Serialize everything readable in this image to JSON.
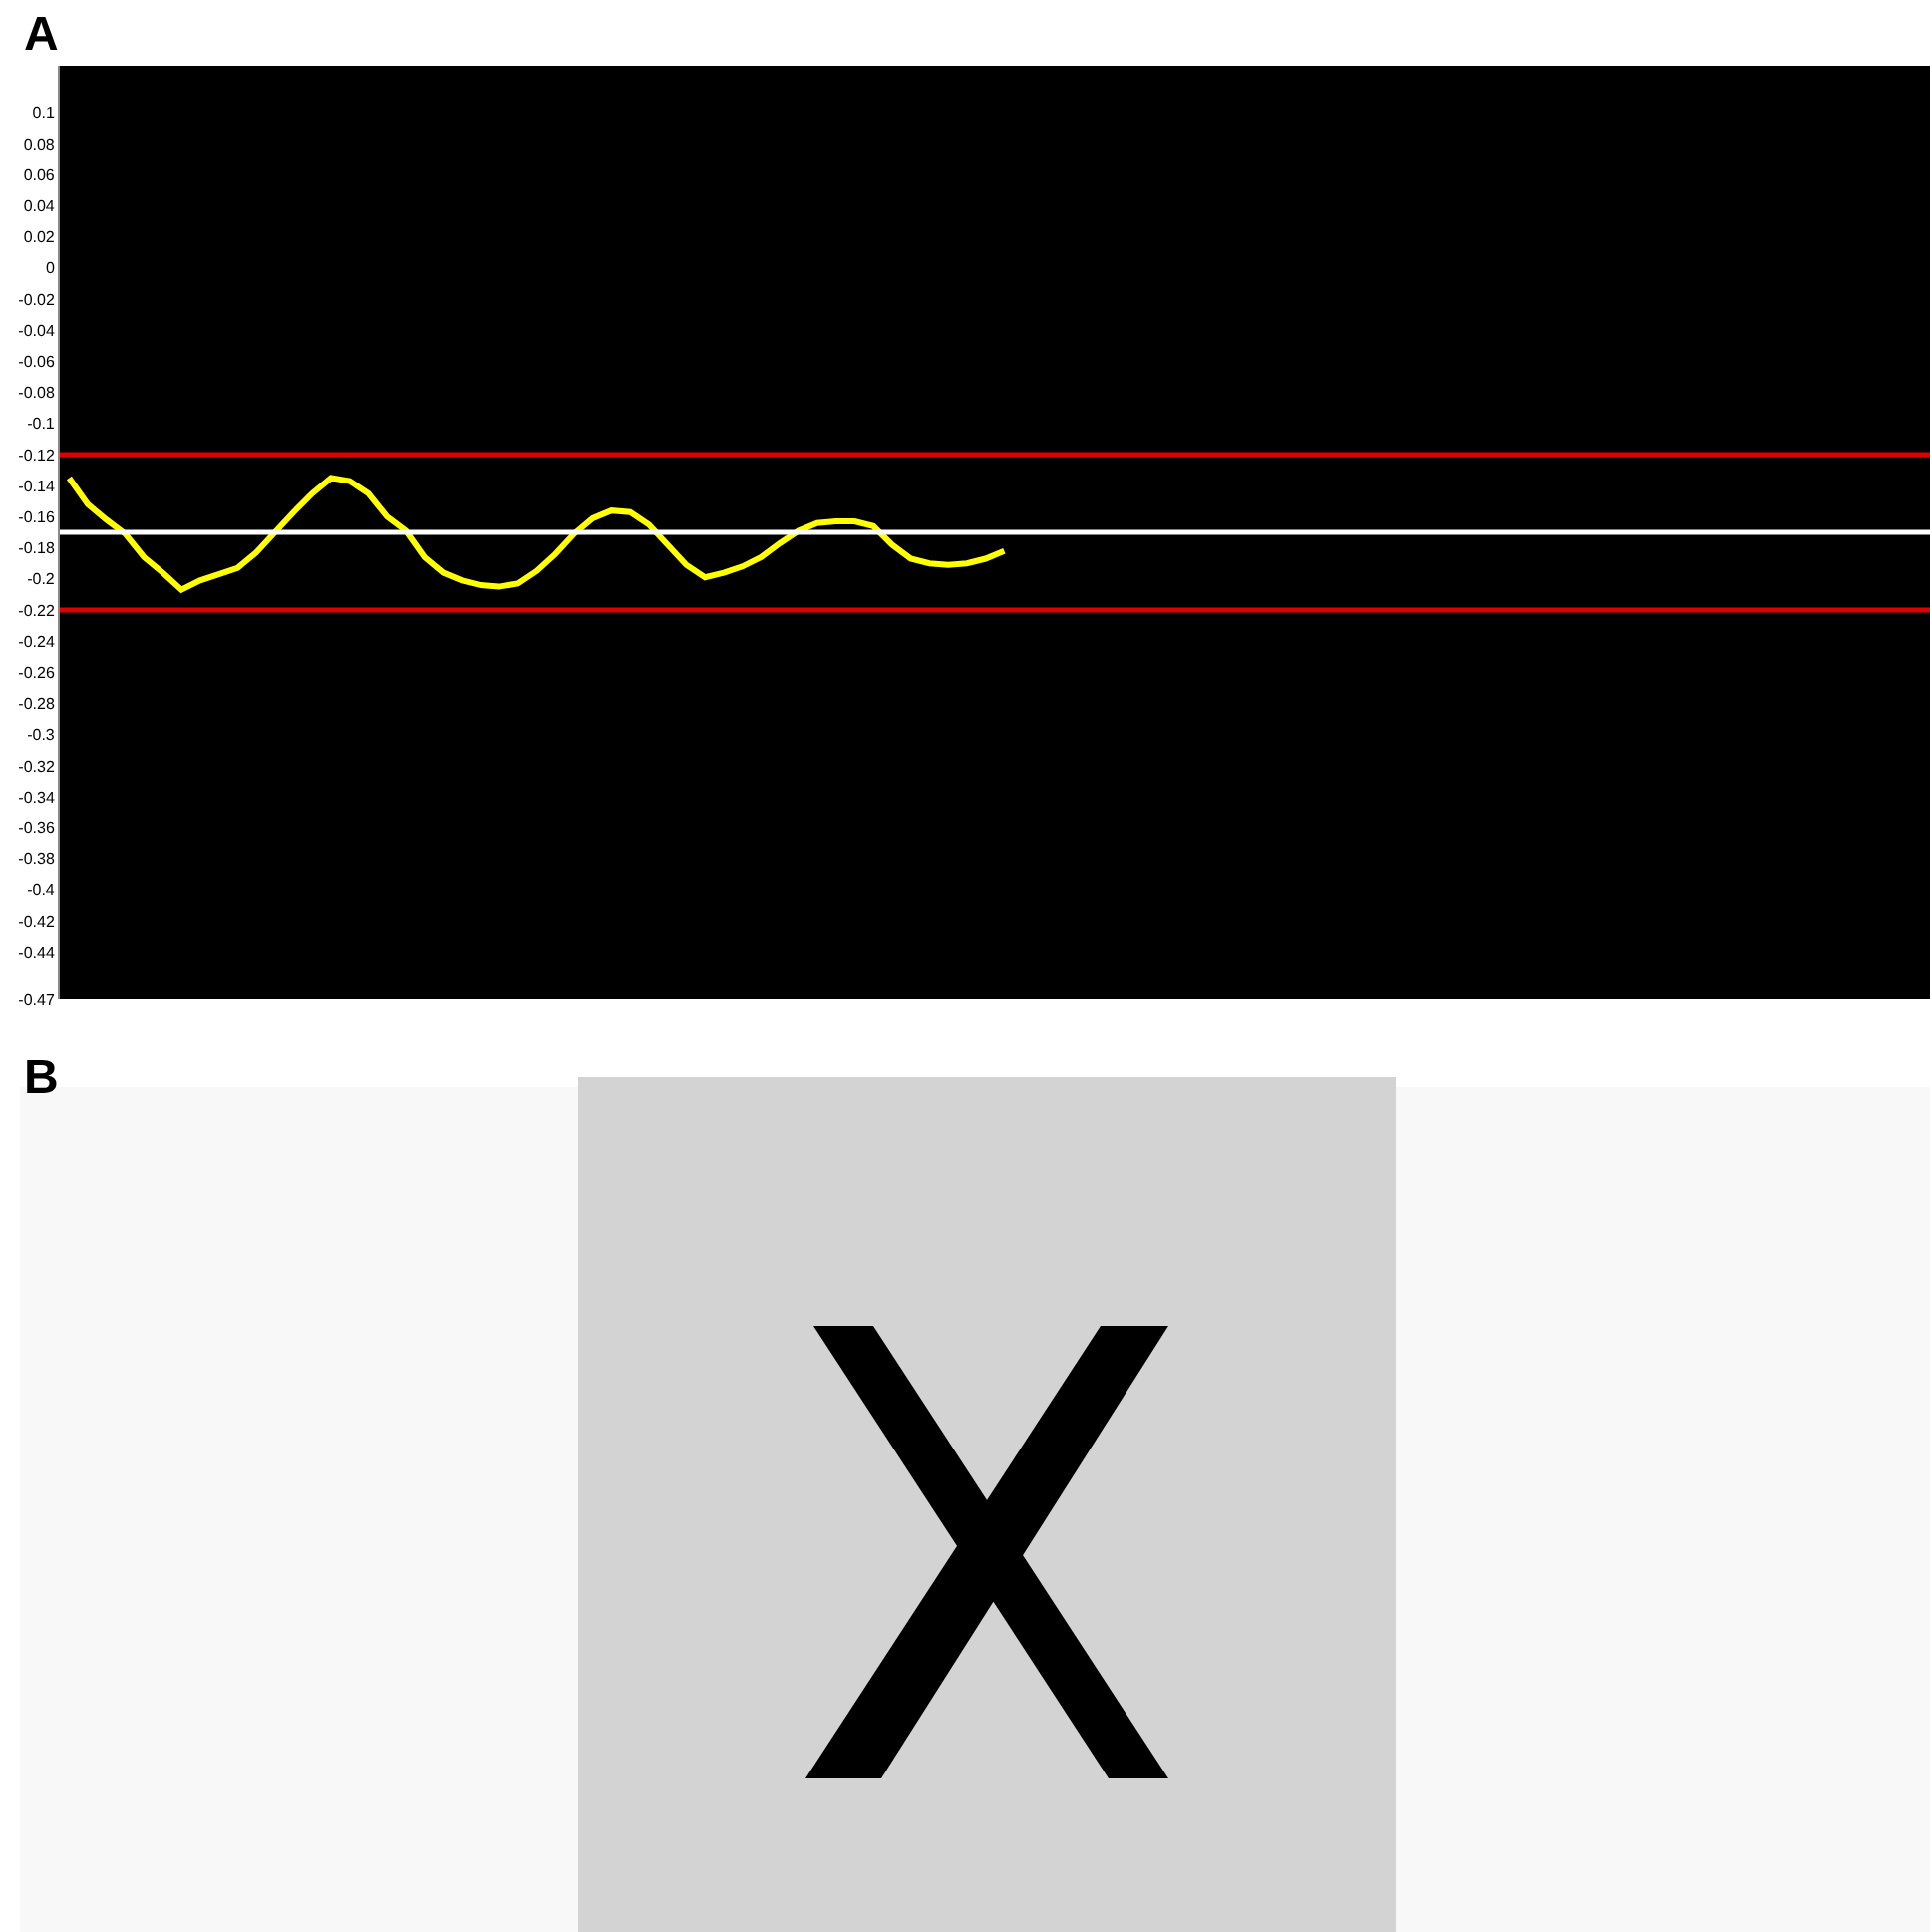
{
  "chart_data": {
    "type": "line",
    "annotations": [
      "A",
      "B"
    ],
    "categories": [
      null,
      null,
      null,
      null,
      null,
      null,
      null,
      null,
      null,
      null,
      null,
      null,
      null,
      null,
      null,
      null,
      null,
      null,
      null,
      null,
      null,
      null,
      null,
      null,
      null,
      null,
      null,
      null,
      null,
      null,
      null,
      null,
      null,
      null,
      null,
      null,
      null,
      null,
      null,
      null,
      null,
      null,
      null,
      null,
      null,
      null,
      null,
      null,
      null,
      null,
      null,
      null,
      null,
      null,
      null,
      null,
      null,
      null,
      null,
      null,
      null,
      null,
      null,
      null,
      null,
      null,
      null,
      null,
      null,
      null,
      null,
      null,
      null,
      null,
      null,
      null,
      null,
      null,
      null,
      null,
      null,
      null,
      null,
      null,
      null,
      null,
      null,
      null,
      null,
      null,
      null,
      null,
      null,
      null,
      null,
      null,
      null,
      null,
      null,
      null
    ],
    "series": [
      {
        "color": "#ffff00",
        "values": [
          -0.135,
          -0.152,
          -0.162,
          -0.171,
          -0.186,
          -0.196,
          -0.207,
          -0.201,
          -0.197,
          -0.193,
          -0.183,
          -0.17,
          -0.157,
          -0.145,
          -0.135,
          -0.137,
          -0.145,
          -0.16,
          -0.169,
          -0.186,
          -0.196,
          -0.201,
          -0.204,
          -0.205,
          -0.203,
          -0.195,
          -0.184,
          -0.171,
          -0.161,
          -0.156,
          -0.157,
          -0.165,
          -0.178,
          -0.191,
          -0.199,
          -0.196,
          -0.192,
          -0.186,
          -0.177,
          -0.169,
          -0.164,
          -0.163,
          -0.163,
          -0.166,
          -0.178,
          -0.187,
          -0.19,
          -0.191,
          -0.19,
          -0.187,
          -0.182,
          null,
          null,
          null,
          null,
          null,
          null,
          null,
          null,
          null,
          null,
          null,
          null,
          null,
          null,
          null,
          null,
          null,
          null,
          null,
          null,
          null,
          null,
          null,
          null,
          null,
          null,
          null,
          null,
          null,
          null,
          null,
          null,
          null,
          null,
          null,
          null,
          null,
          null,
          null,
          null,
          null,
          null,
          null,
          null,
          null,
          null,
          null,
          null,
          null
        ]
      }
    ],
    "ylim": [
      -0.47,
      0.13
    ],
    "yticks": [
      0.1,
      0.08,
      0.06,
      0.04,
      0.02,
      0,
      -0.02,
      -0.04,
      -0.06,
      -0.08,
      -0.1,
      -0.12,
      -0.14,
      -0.16,
      -0.18,
      -0.2,
      -0.22,
      -0.24,
      -0.26,
      -0.28,
      -0.3,
      -0.32,
      -0.34,
      -0.36,
      -0.38,
      -0.4,
      -0.42,
      -0.44,
      -0.47
    ],
    "ref_lines": [
      {
        "axis": "y",
        "value": -0.12,
        "color": "#e00000"
      },
      {
        "axis": "y",
        "value": -0.17,
        "color": "#ffffff"
      },
      {
        "axis": "y",
        "value": -0.22,
        "color": "#e00000"
      }
    ],
    "tick_labels": "y",
    "marker": "none",
    "line_style": "solid"
  }
}
